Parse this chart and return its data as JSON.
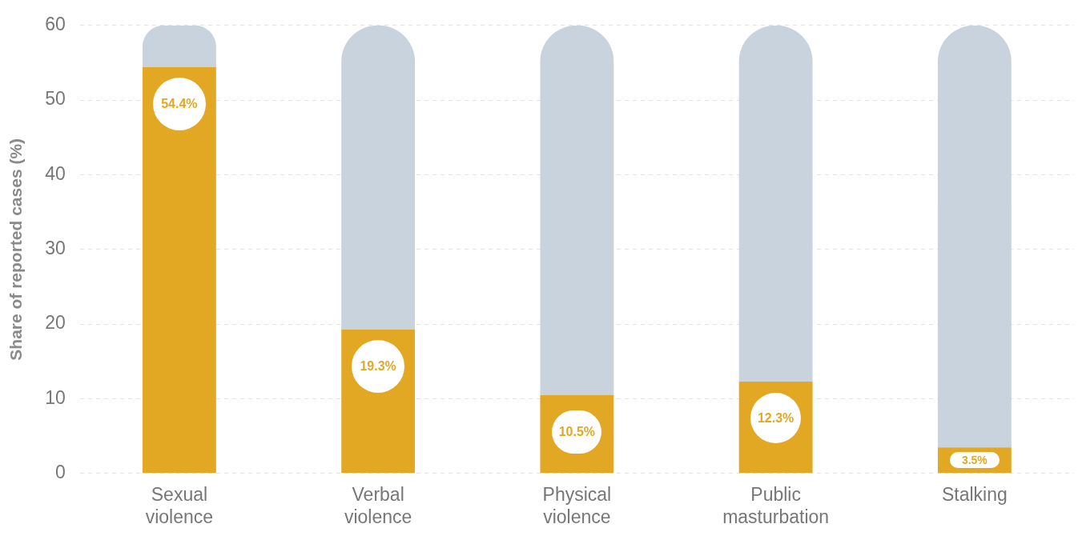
{
  "chart_data": {
    "type": "bar",
    "ylabel": "Share of reported cases (%)",
    "stacked": true,
    "categories": [
      "Sexual violence",
      "Verbal violence",
      "Physical violence",
      "Public masturbation",
      "Stalking"
    ],
    "series": [
      {
        "color": "#e3a823",
        "values": [
          54.4,
          19.3,
          10.5,
          12.3,
          3.5
        ],
        "value_labels": [
          "54.4%",
          "19.3%",
          "10.5%",
          "12.3%",
          "3.5%"
        ]
      },
      {
        "color": "#c8d3dd",
        "values": [
          5.6,
          40.7,
          49.5,
          47.7,
          56.5
        ]
      }
    ],
    "ylim": [
      0,
      60
    ],
    "yticks": [
      0,
      10,
      20,
      30,
      40,
      50,
      60
    ],
    "grid": "y",
    "legend": false
  }
}
